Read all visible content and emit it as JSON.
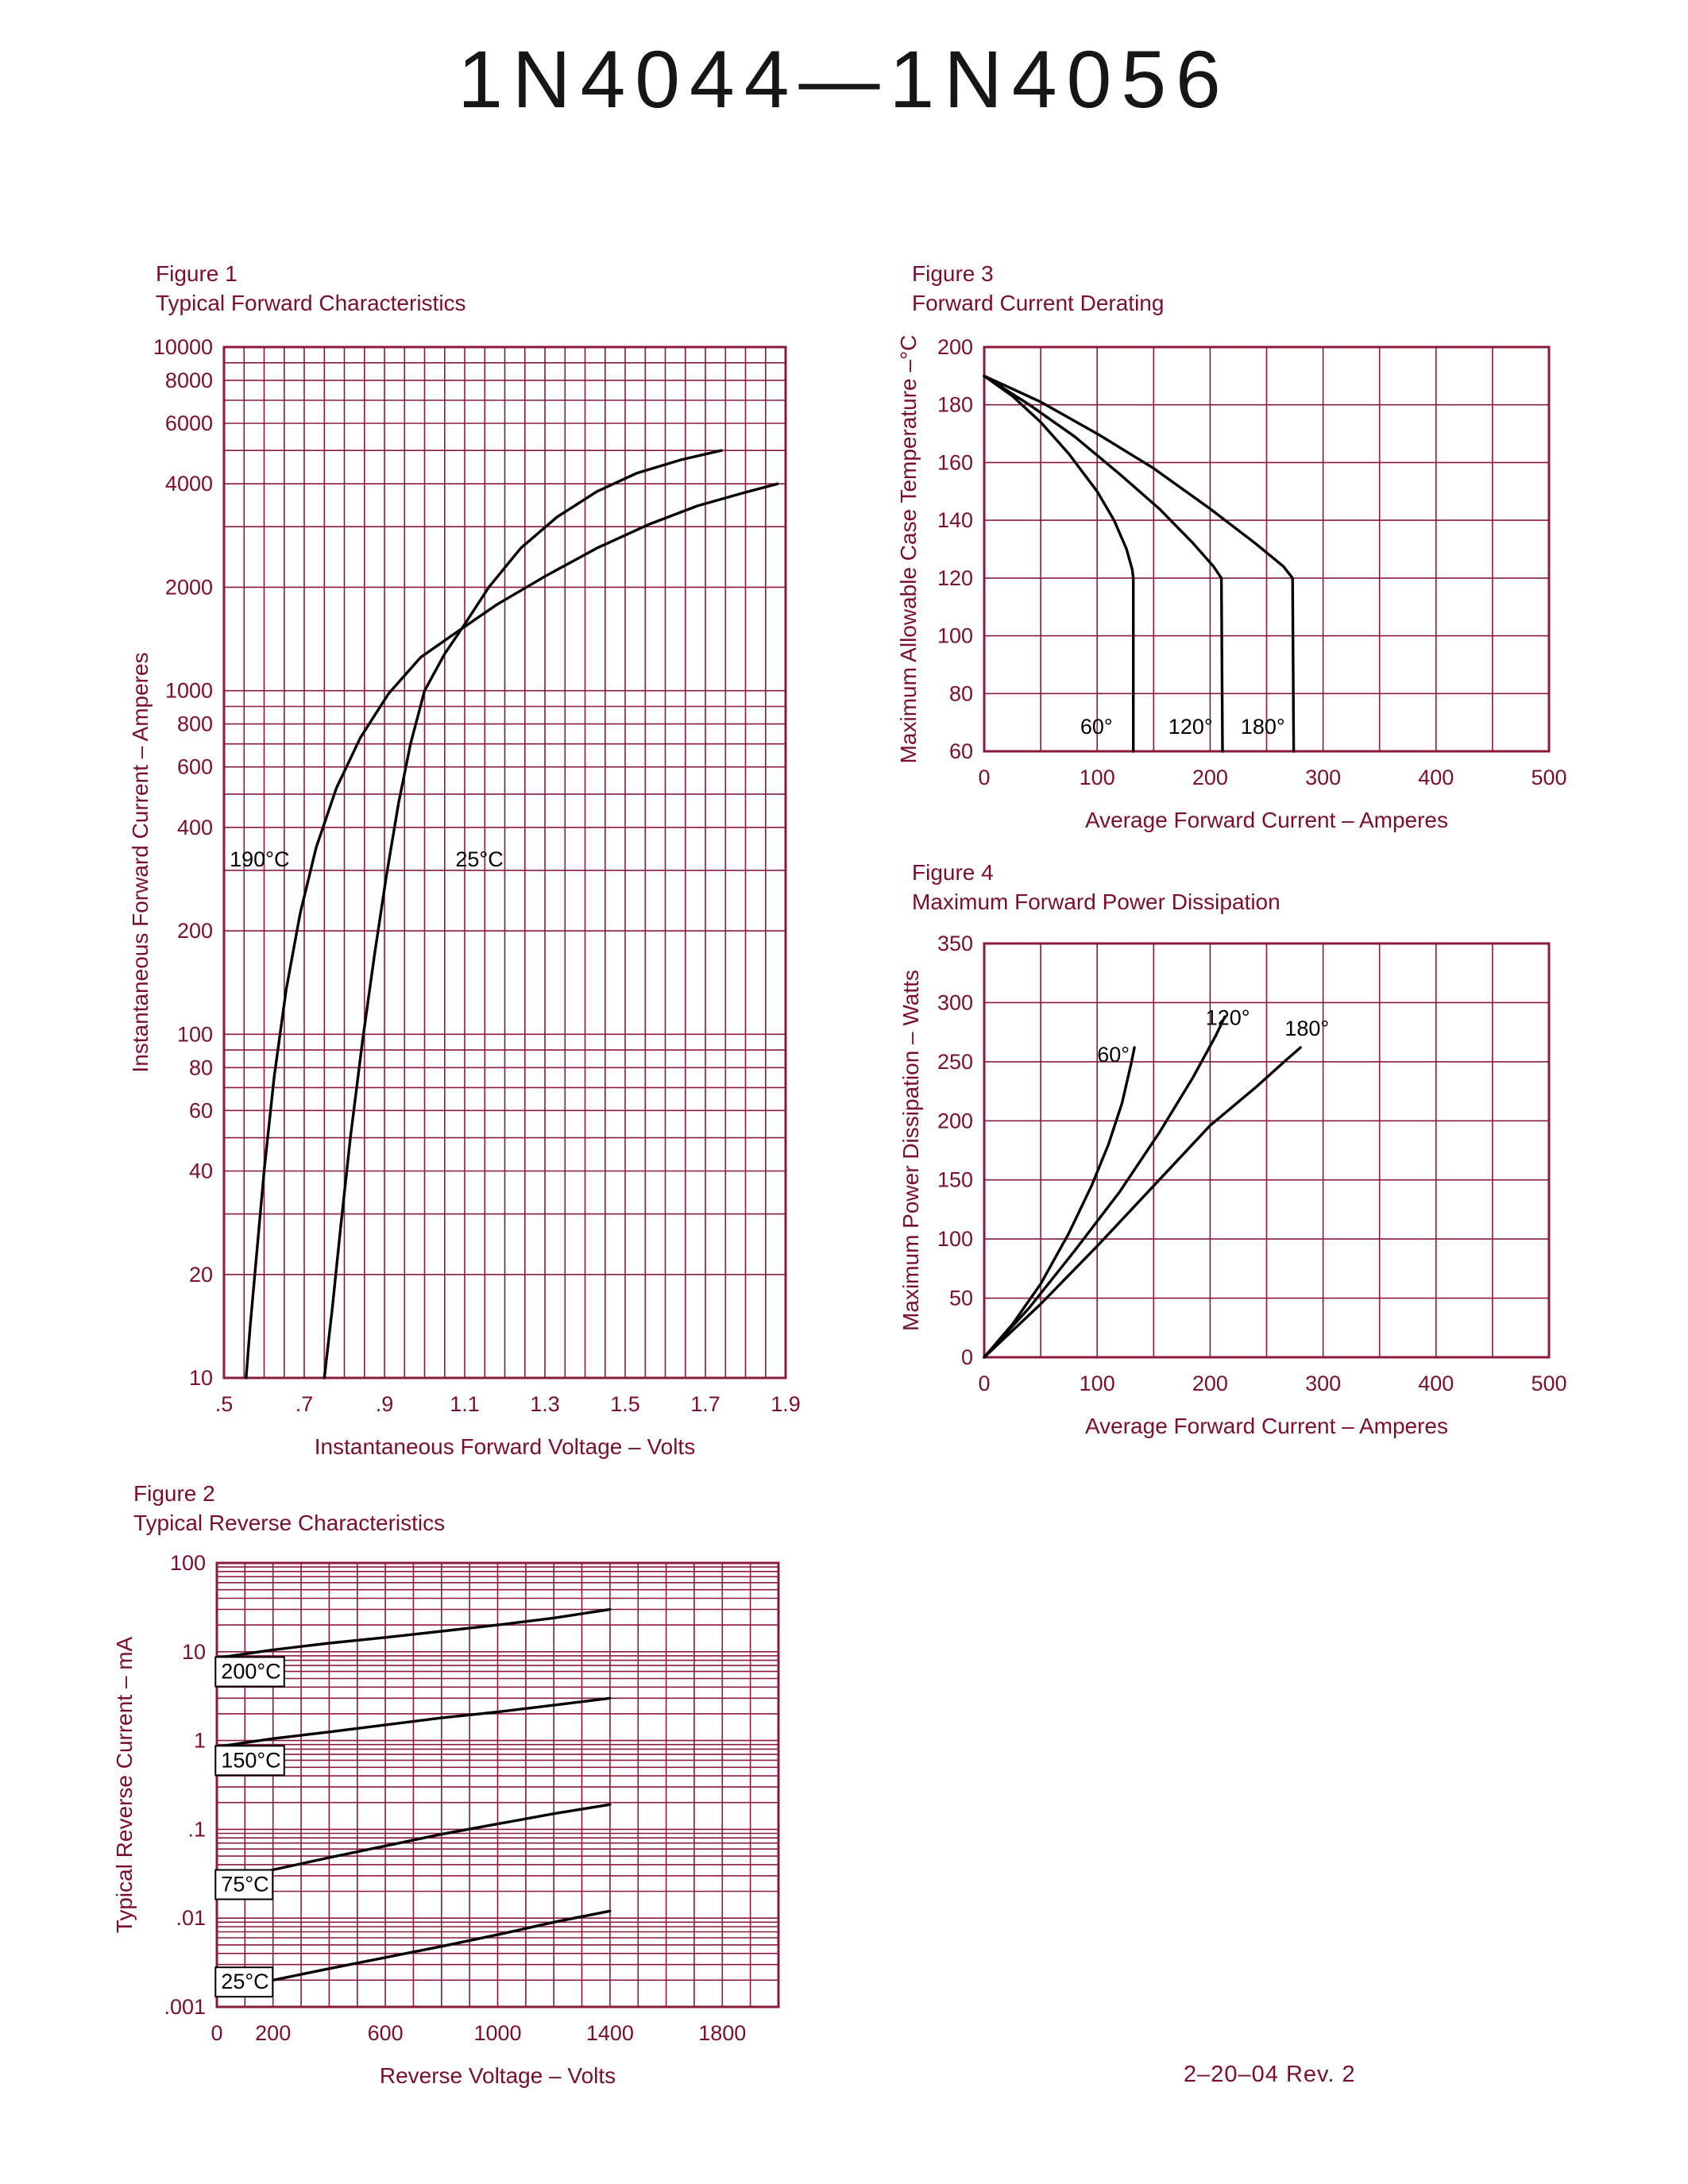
{
  "page": {
    "title": "1N4044—1N4056",
    "footer": "2–20–04   Rev. 2",
    "colors": {
      "ink": "#7b0e2c",
      "grid": "#8a1a39",
      "curve": "#000000"
    }
  },
  "chart_data": [
    {
      "id": "figure-1",
      "type": "line",
      "title": "Figure 1",
      "subtitle": "Typical Forward Characteristics",
      "xlabel": "Instantaneous Forward Voltage – Volts",
      "ylabel": "Instantaneous Forward Current – Amperes",
      "x_axis": {
        "scale": "linear",
        "min": 0.5,
        "max": 1.9,
        "grid_step": 0.05,
        "ticks": [
          {
            "v": 0.5,
            "t": ".5"
          },
          {
            "v": 0.7,
            "t": ".7"
          },
          {
            "v": 0.9,
            "t": ".9"
          },
          {
            "v": 1.1,
            "t": "1.1"
          },
          {
            "v": 1.3,
            "t": "1.3"
          },
          {
            "v": 1.5,
            "t": "1.5"
          },
          {
            "v": 1.7,
            "t": "1.7"
          },
          {
            "v": 1.9,
            "t": "1.9"
          }
        ]
      },
      "y_axis": {
        "scale": "log",
        "min": 10,
        "max": 10000,
        "ticks": [
          {
            "v": 10000,
            "t": "10000"
          },
          {
            "v": 8000,
            "t": "8000"
          },
          {
            "v": 6000,
            "t": "6000"
          },
          {
            "v": 4000,
            "t": "4000"
          },
          {
            "v": 2000,
            "t": "2000"
          },
          {
            "v": 1000,
            "t": "1000"
          },
          {
            "v": 800,
            "t": "800"
          },
          {
            "v": 600,
            "t": "600"
          },
          {
            "v": 400,
            "t": "400"
          },
          {
            "v": 200,
            "t": "200"
          },
          {
            "v": 100,
            "t": "100"
          },
          {
            "v": 80,
            "t": "80"
          },
          {
            "v": 60,
            "t": "60"
          },
          {
            "v": 40,
            "t": "40"
          },
          {
            "v": 20,
            "t": "20"
          },
          {
            "v": 10,
            "t": "10"
          }
        ]
      },
      "series": [
        {
          "name": "190°C",
          "label": [
            0.514,
            308
          ],
          "points": [
            [
              0.555,
              10
            ],
            [
              0.565,
              14
            ],
            [
              0.58,
              22
            ],
            [
              0.6,
              40
            ],
            [
              0.625,
              75
            ],
            [
              0.655,
              135
            ],
            [
              0.69,
              225
            ],
            [
              0.73,
              350
            ],
            [
              0.78,
              520
            ],
            [
              0.84,
              730
            ],
            [
              0.91,
              980
            ],
            [
              0.99,
              1250
            ],
            [
              1.08,
              1480
            ],
            [
              1.18,
              1780
            ],
            [
              1.3,
              2150
            ],
            [
              1.43,
              2600
            ],
            [
              1.56,
              3050
            ],
            [
              1.68,
              3450
            ],
            [
              1.79,
              3750
            ],
            [
              1.88,
              4000
            ]
          ]
        },
        {
          "name": "25°C",
          "label": [
            1.077,
            308
          ],
          "points": [
            [
              0.75,
              10
            ],
            [
              0.77,
              16
            ],
            [
              0.79,
              27
            ],
            [
              0.815,
              50
            ],
            [
              0.845,
              95
            ],
            [
              0.875,
              170
            ],
            [
              0.905,
              290
            ],
            [
              0.935,
              470
            ],
            [
              0.965,
              700
            ],
            [
              1.0,
              1000
            ],
            [
              1.05,
              1280
            ],
            [
              1.1,
              1560
            ],
            [
              1.16,
              2000
            ],
            [
              1.24,
              2600
            ],
            [
              1.33,
              3200
            ],
            [
              1.43,
              3800
            ],
            [
              1.53,
              4300
            ],
            [
              1.64,
              4700
            ],
            [
              1.74,
              5000
            ]
          ]
        }
      ]
    },
    {
      "id": "figure-2",
      "type": "line",
      "title": "Figure 2",
      "subtitle": "Typical Reverse Characteristics",
      "xlabel": "Reverse Voltage – Volts",
      "ylabel": "Typical Reverse Current – mA",
      "x_axis": {
        "scale": "linear",
        "min": 0,
        "max": 2000,
        "grid_step": 100,
        "ticks": [
          {
            "v": 0,
            "t": "0"
          },
          {
            "v": 200,
            "t": "200"
          },
          {
            "v": 600,
            "t": "600"
          },
          {
            "v": 1000,
            "t": "1000"
          },
          {
            "v": 1400,
            "t": "1400"
          },
          {
            "v": 1800,
            "t": "1800"
          }
        ]
      },
      "y_axis": {
        "scale": "log",
        "min": 0.001,
        "max": 100,
        "ticks": [
          {
            "v": 100,
            "t": "100"
          },
          {
            "v": 10,
            "t": "10"
          },
          {
            "v": 1,
            "t": "1"
          },
          {
            "v": 0.1,
            "t": ".1"
          },
          {
            "v": 0.01,
            "t": ".01"
          },
          {
            "v": 0.001,
            "t": ".001"
          }
        ]
      },
      "series": [
        {
          "name": "200°C",
          "boxed": true,
          "label": [
            15,
            5
          ],
          "points": [
            [
              0,
              8.5
            ],
            [
              200,
              10.5
            ],
            [
              400,
              12.5
            ],
            [
              600,
              14.5
            ],
            [
              800,
              17
            ],
            [
              1000,
              20
            ],
            [
              1200,
              24
            ],
            [
              1400,
              30
            ]
          ]
        },
        {
          "name": "150°C",
          "boxed": true,
          "label": [
            15,
            0.5
          ],
          "points": [
            [
              0,
              0.85
            ],
            [
              200,
              1.05
            ],
            [
              400,
              1.25
            ],
            [
              600,
              1.5
            ],
            [
              800,
              1.8
            ],
            [
              1000,
              2.1
            ],
            [
              1200,
              2.5
            ],
            [
              1400,
              3.0
            ]
          ]
        },
        {
          "name": "75°C",
          "boxed": true,
          "label": [
            15,
            0.02
          ],
          "points": [
            [
              0,
              0.025
            ],
            [
              200,
              0.035
            ],
            [
              400,
              0.048
            ],
            [
              600,
              0.065
            ],
            [
              800,
              0.088
            ],
            [
              1000,
              0.115
            ],
            [
              1200,
              0.15
            ],
            [
              1400,
              0.19
            ]
          ]
        },
        {
          "name": "25°C",
          "boxed": true,
          "label": [
            15,
            0.0016
          ],
          "points": [
            [
              0,
              0.0015
            ],
            [
              200,
              0.002
            ],
            [
              400,
              0.0027
            ],
            [
              600,
              0.0036
            ],
            [
              800,
              0.0048
            ],
            [
              1000,
              0.0065
            ],
            [
              1200,
              0.009
            ],
            [
              1400,
              0.012
            ]
          ]
        }
      ]
    },
    {
      "id": "figure-3",
      "type": "line",
      "title": "Figure 3",
      "subtitle": "Forward Current Derating",
      "xlabel": "Average Forward Current – Amperes",
      "ylabel": "Maximum Allowable Case Temperature –°C",
      "x_axis": {
        "scale": "linear",
        "min": 0,
        "max": 500,
        "grid_step": 50,
        "ticks": [
          {
            "v": 0,
            "t": "0"
          },
          {
            "v": 100,
            "t": "100"
          },
          {
            "v": 200,
            "t": "200"
          },
          {
            "v": 300,
            "t": "300"
          },
          {
            "v": 400,
            "t": "400"
          },
          {
            "v": 500,
            "t": "500"
          }
        ]
      },
      "y_axis": {
        "scale": "linear",
        "min": 60,
        "max": 200,
        "grid_step": 20,
        "ticks": [
          {
            "v": 200,
            "t": "200"
          },
          {
            "v": 180,
            "t": "180"
          },
          {
            "v": 160,
            "t": "160"
          },
          {
            "v": 140,
            "t": "140"
          },
          {
            "v": 120,
            "t": "120"
          },
          {
            "v": 100,
            "t": "100"
          },
          {
            "v": 80,
            "t": "80"
          },
          {
            "v": 60,
            "t": "60"
          }
        ]
      },
      "series": [
        {
          "name": "60°",
          "label": [
            85,
            66
          ],
          "points": [
            [
              0,
              190
            ],
            [
              25,
              183
            ],
            [
              50,
              174
            ],
            [
              75,
              163
            ],
            [
              100,
              150
            ],
            [
              115,
              140
            ],
            [
              126,
              130
            ],
            [
              131,
              123
            ],
            [
              132,
              120
            ],
            [
              132,
              60
            ]
          ]
        },
        {
          "name": "120°",
          "label": [
            163,
            66
          ],
          "points": [
            [
              0,
              190
            ],
            [
              40,
              180
            ],
            [
              80,
              169
            ],
            [
              120,
              156
            ],
            [
              155,
              144
            ],
            [
              185,
              132
            ],
            [
              203,
              124
            ],
            [
              210,
              120
            ],
            [
              211,
              60
            ]
          ]
        },
        {
          "name": "180°",
          "label": [
            227,
            66
          ],
          "points": [
            [
              0,
              190
            ],
            [
              50,
              181
            ],
            [
              100,
              170
            ],
            [
              150,
              158
            ],
            [
              200,
              144
            ],
            [
              240,
              132
            ],
            [
              265,
              124
            ],
            [
              273,
              120
            ],
            [
              274,
              60
            ]
          ]
        }
      ]
    },
    {
      "id": "figure-4",
      "type": "line",
      "title": "Figure 4",
      "subtitle": "Maximum Forward Power Dissipation",
      "xlabel": "Average Forward Current – Amperes",
      "ylabel": "Maximum Power Dissipation – Watts",
      "x_axis": {
        "scale": "linear",
        "min": 0,
        "max": 500,
        "grid_step": 50,
        "ticks": [
          {
            "v": 0,
            "t": "0"
          },
          {
            "v": 100,
            "t": "100"
          },
          {
            "v": 200,
            "t": "200"
          },
          {
            "v": 300,
            "t": "300"
          },
          {
            "v": 400,
            "t": "400"
          },
          {
            "v": 500,
            "t": "500"
          }
        ]
      },
      "y_axis": {
        "scale": "linear",
        "min": 0,
        "max": 350,
        "grid_step": 50,
        "ticks": [
          {
            "v": 350,
            "t": "350"
          },
          {
            "v": 300,
            "t": "300"
          },
          {
            "v": 250,
            "t": "250"
          },
          {
            "v": 200,
            "t": "200"
          },
          {
            "v": 150,
            "t": "150"
          },
          {
            "v": 100,
            "t": "100"
          },
          {
            "v": 50,
            "t": "50"
          },
          {
            "v": 0,
            "t": "0"
          }
        ]
      },
      "series": [
        {
          "name": "60°",
          "label": [
            100,
            250
          ],
          "points": [
            [
              0,
              0
            ],
            [
              25,
              28
            ],
            [
              50,
              62
            ],
            [
              75,
              105
            ],
            [
              95,
              145
            ],
            [
              110,
              180
            ],
            [
              122,
              215
            ],
            [
              130,
              248
            ],
            [
              133,
              262
            ]
          ]
        },
        {
          "name": "120°",
          "label": [
            196,
            281
          ],
          "points": [
            [
              0,
              0
            ],
            [
              40,
              42
            ],
            [
              80,
              90
            ],
            [
              120,
              140
            ],
            [
              155,
              190
            ],
            [
              185,
              237
            ],
            [
              205,
              272
            ],
            [
              213,
              288
            ]
          ]
        },
        {
          "name": "180°",
          "label": [
            266,
            272
          ],
          "points": [
            [
              0,
              0
            ],
            [
              50,
              45
            ],
            [
              100,
              94
            ],
            [
              150,
              145
            ],
            [
              200,
              196
            ],
            [
              240,
              228
            ],
            [
              268,
              252
            ],
            [
              280,
              262
            ]
          ]
        }
      ]
    }
  ]
}
